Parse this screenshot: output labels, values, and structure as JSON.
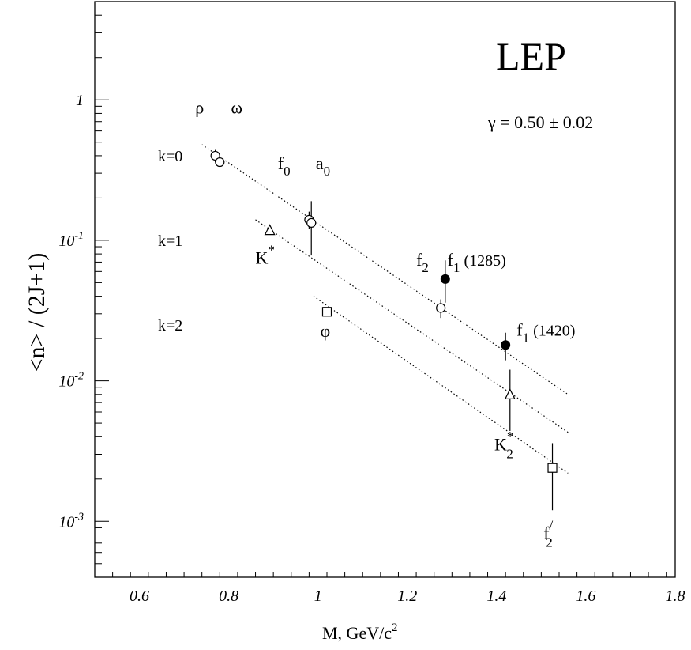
{
  "chart_data": {
    "type": "scatter",
    "title": "LEP",
    "xlabel": "M, GeV/c",
    "xlabel_sup": "2",
    "ylabel": "<n> / (2J+1)",
    "xlim": [
      0.5,
      1.8
    ],
    "ylim": [
      0.0004,
      5
    ],
    "yscale": "log",
    "x_ticks": [
      "0.6",
      "0.8",
      "1",
      "1.2",
      "1.4",
      "1.6",
      "1.8"
    ],
    "y_ticks": [
      {
        "value": 1,
        "base": "1",
        "exp": ""
      },
      {
        "value": 0.1,
        "base": "10",
        "exp": "-1"
      },
      {
        "value": 0.01,
        "base": "10",
        "exp": "-2"
      },
      {
        "value": 0.001,
        "base": "10",
        "exp": "-3"
      }
    ],
    "annotation": "γ = 0.50 ± 0.02",
    "grid": false,
    "series": [
      {
        "name": "k=0",
        "marker": "open-circle",
        "points": [
          {
            "x": 0.77,
            "y": 0.4,
            "lo": 0.36,
            "hi": 0.44
          },
          {
            "x": 0.78,
            "y": 0.36
          },
          {
            "x": 0.98,
            "y": 0.14,
            "lo": 0.12,
            "hi": 0.16
          },
          {
            "x": 0.985,
            "y": 0.133,
            "lo": 0.078,
            "hi": 0.19
          },
          {
            "x": 1.275,
            "y": 0.033,
            "lo": 0.028,
            "hi": 0.038
          }
        ]
      },
      {
        "name": "k=0",
        "marker": "filled-circle",
        "points": [
          {
            "x": 1.285,
            "y": 0.053,
            "lo": 0.036,
            "hi": 0.072
          },
          {
            "x": 1.42,
            "y": 0.018,
            "lo": 0.014,
            "hi": 0.022
          }
        ]
      },
      {
        "name": "k=1",
        "marker": "open-triangle",
        "points": [
          {
            "x": 0.892,
            "y": 0.118
          },
          {
            "x": 1.43,
            "y": 0.008,
            "lo": 0.0044,
            "hi": 0.012
          }
        ]
      },
      {
        "name": "k=2",
        "marker": "open-square",
        "points": [
          {
            "x": 1.02,
            "y": 0.031
          },
          {
            "x": 1.525,
            "y": 0.0024,
            "lo": 0.0012,
            "hi": 0.0036
          }
        ]
      }
    ],
    "fit_lines": [
      {
        "name": "k=0",
        "x": [
          0.74,
          1.56
        ],
        "y": [
          0.48,
          0.008
        ]
      },
      {
        "name": "k=1",
        "x": [
          0.86,
          1.56
        ],
        "y": [
          0.14,
          0.0043
        ]
      },
      {
        "name": "k=2",
        "x": [
          0.99,
          1.56
        ],
        "y": [
          0.04,
          0.0022
        ]
      }
    ],
    "row_labels": [
      {
        "text": "k=0",
        "y": 0.4
      },
      {
        "text": "k=1",
        "y": 0.1
      },
      {
        "text": "k=2",
        "y": 0.025
      }
    ],
    "particle_labels": [
      {
        "id": "rho",
        "text": "ρ",
        "sub": "",
        "sup": "",
        "suffix": "",
        "x": 0.725,
        "y": 0.8
      },
      {
        "id": "omega",
        "text": "ω",
        "sub": "",
        "sup": "",
        "suffix": "",
        "x": 0.805,
        "y": 0.8
      },
      {
        "id": "f0",
        "text": "f",
        "sub": "0",
        "sup": "",
        "suffix": "",
        "x": 0.91,
        "y": 0.32
      },
      {
        "id": "a0",
        "text": "a",
        "sub": "0",
        "sup": "",
        "suffix": "",
        "x": 0.995,
        "y": 0.32
      },
      {
        "id": "kstar",
        "text": "K",
        "sub": "",
        "sup": "*",
        "suffix": "",
        "x": 0.86,
        "y": 0.068
      },
      {
        "id": "phi",
        "text": "φ",
        "sub": "",
        "sup": "",
        "suffix": "",
        "x": 1.005,
        "y": 0.0205
      },
      {
        "id": "f2",
        "text": "f",
        "sub": "2",
        "sup": "",
        "suffix": "",
        "x": 1.22,
        "y": 0.066
      },
      {
        "id": "f1-1285",
        "text": "f",
        "sub": "1",
        "sup": "",
        "suffix": " (1285)",
        "x": 1.29,
        "y": 0.066
      },
      {
        "id": "f1-1420",
        "text": "f",
        "sub": "1",
        "sup": "",
        "suffix": " (1420)",
        "x": 1.445,
        "y": 0.021
      },
      {
        "id": "k2star",
        "text": "K",
        "sub": "2",
        "sup": "*",
        "suffix": "",
        "x": 1.395,
        "y": 0.0032
      },
      {
        "id": "f2prime",
        "text": "f",
        "sub": "2",
        "sup": "/",
        "suffix": "",
        "x": 1.505,
        "y": 0.00075
      }
    ]
  }
}
